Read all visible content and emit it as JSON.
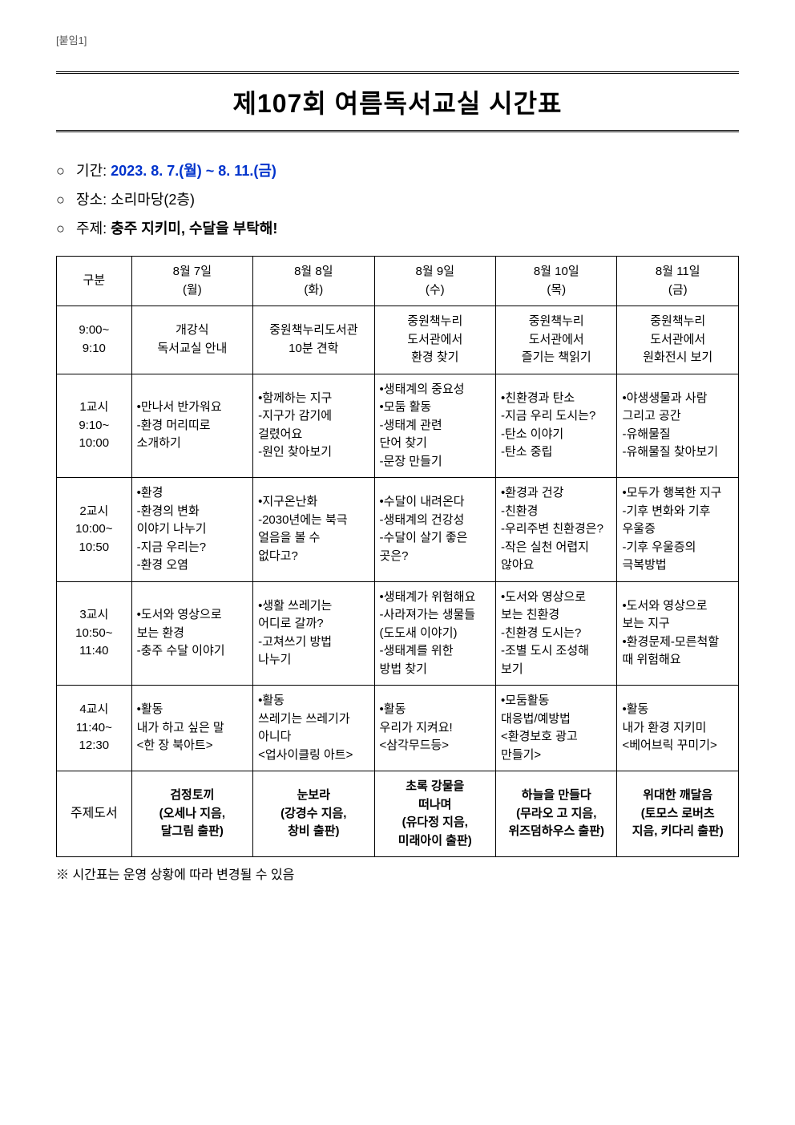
{
  "attachment_label": "[붙임1]",
  "title": "제107회 여름독서교실 시간표",
  "info": {
    "period_label": "기간:",
    "period_value": "2023. 8. 7.(월) ~ 8. 11.(금)",
    "place_label": "장소:",
    "place_value": "소리마당(2층)",
    "theme_label": "주제:",
    "theme_value": "충주 지키미, 수달을 부탁해!"
  },
  "columns": {
    "gubun": "구분",
    "day1": "8월 7일\n(월)",
    "day2": "8월 8일\n(화)",
    "day3": "8월 9일\n(수)",
    "day4": "8월 10일\n(목)",
    "day5": "8월 11일\n(금)"
  },
  "rows": [
    {
      "label": "9:00~\n9:10",
      "align": "center",
      "cells": [
        "개강식\n독서교실 안내",
        "중원책누리도서관\n10분 견학",
        "중원책누리\n도서관에서\n환경 찾기",
        "중원책누리\n도서관에서\n즐기는 책읽기",
        "중원책누리\n도서관에서\n원화전시 보기"
      ]
    },
    {
      "label": "1교시\n9:10~\n10:00",
      "align": "left",
      "cells": [
        "•만나서 반가워요\n-환경 머리띠로\n 소개하기",
        "•함께하는 지구\n-지구가 감기에\n 걸렸어요\n-원인 찾아보기",
        "•생태계의 중요성\n•모둠 활동\n-생태계 관련\n 단어 찾기\n-문장 만들기",
        "•친환경과 탄소\n-지금 우리 도시는?\n-탄소 이야기\n-탄소 중립",
        "•야생생물과 사람\n 그리고 공간\n-유해물질\n-유해물질 찾아보기"
      ]
    },
    {
      "label": "2교시\n10:00~\n10:50",
      "align": "left",
      "cells": [
        "•환경\n-환경의 변화\n 이야기 나누기\n-지금 우리는?\n-환경 오염",
        "•지구온난화\n-2030년에는 북극\n 얼음을 볼 수\n 없다고?",
        "•수달이 내려온다\n-생태계의 건강성\n-수달이 살기 좋은\n 곳은?",
        "•환경과 건강\n-친환경\n-우리주변 친환경은?\n-작은 실천 어렵지\n 않아요",
        "•모두가 행복한 지구\n-기후 변화와 기후\n 우울증\n-기후 우울증의\n 극복방법"
      ]
    },
    {
      "label": "3교시\n10:50~\n11:40",
      "align": "left",
      "cells": [
        "•도서와 영상으로\n 보는 환경\n-충주 수달 이야기",
        "•생활 쓰레기는\n 어디로 갈까?\n-고쳐쓰기 방법\n 나누기",
        "•생태계가 위험해요\n-사라져가는 생물들\n (도도새 이야기)\n-생태계를 위한\n 방법 찾기",
        "•도서와 영상으로\n 보는 친환경\n-친환경 도시는?\n-조별 도시 조성해\n 보기",
        "•도서와 영상으로\n 보는 지구\n•환경문제-모른척할\n 때 위험해요"
      ]
    },
    {
      "label": "4교시\n11:40~\n12:30",
      "align": "left",
      "cells": [
        "•활동\n내가 하고 싶은 말\n<한 장 북아트>",
        "•활동\n쓰레기는 쓰레기가\n아니다\n<업사이클링 아트>",
        "•활동\n우리가 지켜요!\n<삼각무드등>",
        "•모둠활동\n대응법/예방법\n<환경보호 광고\n만들기>",
        "•활동\n내가 환경 지키미\n<베어브릭 꾸미기>"
      ]
    }
  ],
  "book_row": {
    "label": "주제도서",
    "cells": [
      "검정토끼\n(오세나 지음,\n달그림 출판)",
      "눈보라\n(강경수 지음,\n창비 출판)",
      "초록 강물을\n떠나며\n(유다정 지음,\n미래아이 출판)",
      "하늘을 만들다\n(무라오 고 지음,\n위즈덤하우스 출판)",
      "위대한 깨달음\n(토모스 로버츠\n지음, 키다리 출판)"
    ]
  },
  "footnote": "※ 시간표는 운영 상황에 따라 변경될 수 있음",
  "colors": {
    "accent": "#0033cc",
    "border": "#000000",
    "text": "#000000",
    "bg": "#ffffff"
  },
  "typography": {
    "title_fontsize": 32,
    "body_fontsize": 15,
    "info_fontsize": 18
  }
}
